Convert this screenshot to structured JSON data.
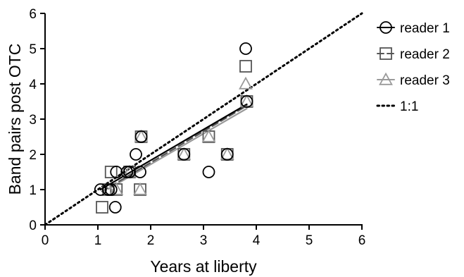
{
  "chart_data": {
    "type": "scatter",
    "xlabel": "Years at liberty",
    "ylabel": "Band pairs post OTC",
    "xlim": [
      0,
      6
    ],
    "ylim": [
      0,
      6
    ],
    "xticks": [
      "0",
      "1",
      "2",
      "3",
      "4",
      "5",
      "6"
    ],
    "yticks": [
      "0",
      "1",
      "2",
      "3",
      "4",
      "5",
      "6"
    ],
    "grid": false,
    "legend_position": "right",
    "series": [
      {
        "name": "reader 1",
        "marker": "circle",
        "line_style": "solid",
        "color": "#000000",
        "points": [
          {
            "x": 1.05,
            "y": 1.0
          },
          {
            "x": 1.2,
            "y": 1.0
          },
          {
            "x": 1.25,
            "y": 1.0
          },
          {
            "x": 1.33,
            "y": 0.5
          },
          {
            "x": 1.35,
            "y": 1.5
          },
          {
            "x": 1.55,
            "y": 1.5
          },
          {
            "x": 1.6,
            "y": 1.5
          },
          {
            "x": 1.72,
            "y": 2.0
          },
          {
            "x": 1.8,
            "y": 1.5
          },
          {
            "x": 1.82,
            "y": 2.5
          },
          {
            "x": 2.63,
            "y": 2.0
          },
          {
            "x": 3.1,
            "y": 1.5
          },
          {
            "x": 3.45,
            "y": 2.0
          },
          {
            "x": 3.8,
            "y": 5.0
          },
          {
            "x": 3.82,
            "y": 3.5
          }
        ],
        "fit": {
          "x": [
            1.05,
            3.82
          ],
          "y": [
            1.0,
            3.42
          ]
        }
      },
      {
        "name": "reader 2",
        "marker": "square",
        "line_style": "dashed",
        "color": "#555555",
        "points": [
          {
            "x": 1.08,
            "y": 0.5
          },
          {
            "x": 1.2,
            "y": 1.0
          },
          {
            "x": 1.25,
            "y": 1.5
          },
          {
            "x": 1.35,
            "y": 1.0
          },
          {
            "x": 1.6,
            "y": 1.5
          },
          {
            "x": 1.8,
            "y": 1.0
          },
          {
            "x": 1.82,
            "y": 2.5
          },
          {
            "x": 2.63,
            "y": 2.0
          },
          {
            "x": 3.1,
            "y": 2.5
          },
          {
            "x": 3.45,
            "y": 2.0
          },
          {
            "x": 3.8,
            "y": 4.5
          },
          {
            "x": 3.82,
            "y": 3.5
          }
        ],
        "fit": {
          "x": [
            1.08,
            3.82
          ],
          "y": [
            0.95,
            3.38
          ]
        }
      },
      {
        "name": "reader 3",
        "marker": "triangle",
        "line_style": "solid",
        "color": "#9a9a9a",
        "points": [
          {
            "x": 1.2,
            "y": 1.0
          },
          {
            "x": 1.35,
            "y": 1.0
          },
          {
            "x": 1.6,
            "y": 1.5
          },
          {
            "x": 1.8,
            "y": 1.0
          },
          {
            "x": 1.82,
            "y": 2.5
          },
          {
            "x": 2.63,
            "y": 2.0
          },
          {
            "x": 3.1,
            "y": 2.5
          },
          {
            "x": 3.45,
            "y": 2.0
          },
          {
            "x": 3.8,
            "y": 4.0
          },
          {
            "x": 3.82,
            "y": 3.5
          }
        ],
        "fit": {
          "x": [
            1.2,
            3.82
          ],
          "y": [
            1.02,
            3.3
          ]
        }
      },
      {
        "name": "1:1",
        "marker": "none",
        "line_style": "dotted",
        "color": "#000000",
        "line": {
          "x": [
            0,
            6
          ],
          "y": [
            0,
            6
          ]
        }
      }
    ]
  }
}
